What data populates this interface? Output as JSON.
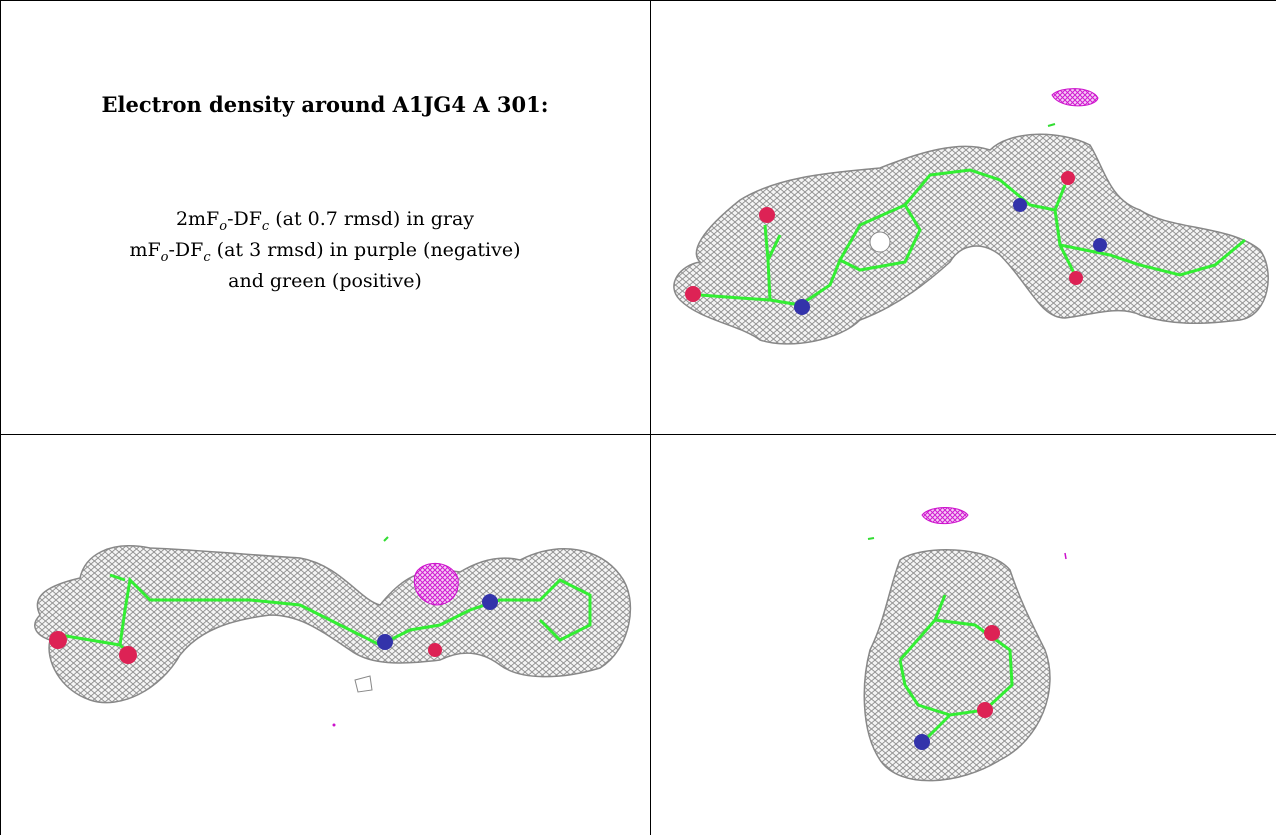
{
  "title": "Electron density around A1JG4 A 301:",
  "legend": {
    "line1": {
      "pre": "2mF",
      "o": "o",
      "mid": "-DF",
      "c": "c",
      "post": " (at 0.7 rmsd) in gray"
    },
    "line2": {
      "pre": "mF",
      "o": "o",
      "mid": "-DF",
      "c": "c",
      "post": " (at 3 rmsd) in purple (negative)"
    },
    "line3": "and green (positive)"
  },
  "colors": {
    "mesh": "#9a9a9a",
    "carbon": "#33ee33",
    "nitrogen": "#3333aa",
    "oxygen": "#dd2255",
    "negative": "#dd22dd",
    "positive": "#33dd33"
  },
  "views": [
    {
      "name": "top-right",
      "description": ""
    },
    {
      "name": "bottom-left",
      "description": ""
    },
    {
      "name": "bottom-right",
      "description": ""
    }
  ]
}
